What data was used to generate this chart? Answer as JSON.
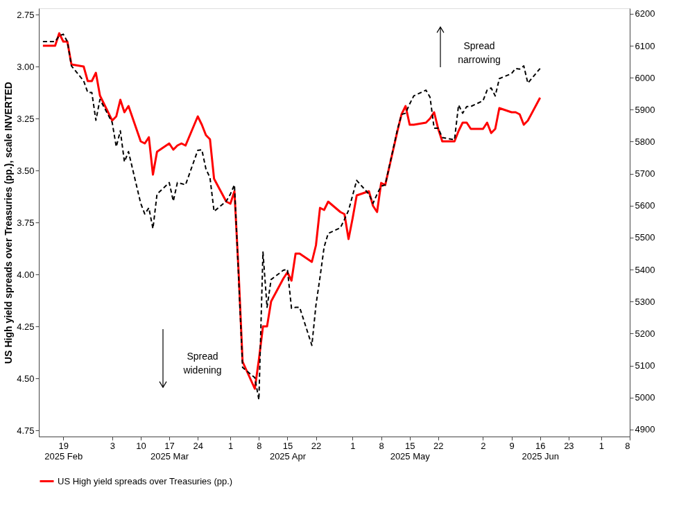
{
  "chart_data": {
    "type": "line",
    "ylabel": "US High yield spreads over Treasuries (pp.), scale INVERTED",
    "legend": "bottom",
    "xlim": [
      "2025-02-13",
      "2025-07-08"
    ],
    "xticks": [
      {
        "value": "2025-02-19",
        "label": "19\n2025 Feb"
      },
      {
        "value": "2025-03-03",
        "label": "3"
      },
      {
        "value": "2025-03-10",
        "label": "10"
      },
      {
        "value": "2025-03-17",
        "label": "17\n2025 Mar"
      },
      {
        "value": "2025-03-24",
        "label": "24"
      },
      {
        "value": "2025-04-01",
        "label": "1"
      },
      {
        "value": "2025-04-08",
        "label": "8"
      },
      {
        "value": "2025-04-15",
        "label": "15\n2025 Apr"
      },
      {
        "value": "2025-04-22",
        "label": "22"
      },
      {
        "value": "2025-05-01",
        "label": "1"
      },
      {
        "value": "2025-05-08",
        "label": "8"
      },
      {
        "value": "2025-05-15",
        "label": "15\n2025 May"
      },
      {
        "value": "2025-05-22",
        "label": "22"
      },
      {
        "value": "2025-06-02",
        "label": "2"
      },
      {
        "value": "2025-06-09",
        "label": "9"
      },
      {
        "value": "2025-06-16",
        "label": "16\n2025 Jun"
      },
      {
        "value": "2025-06-23",
        "label": "23"
      },
      {
        "value": "2025-07-01",
        "label": "1"
      },
      {
        "value": "2025-07-08",
        "label": "8"
      }
    ],
    "ylim": [
      4.78,
      2.72
    ],
    "yticks": [
      2.75,
      {
        "value": 3,
        "label": "3.00"
      },
      3.25,
      {
        "value": 3.5,
        "label": "3.50"
      },
      3.75,
      {
        "value": 4,
        "label": "4.00"
      },
      4.25,
      {
        "value": 4.5,
        "label": "4.50"
      },
      4.75
    ],
    "y2lim": [
      4878,
      6217
    ],
    "y2ticks": [
      4900,
      5000,
      5100,
      5200,
      5300,
      5400,
      5500,
      5600,
      5700,
      5800,
      5900,
      6000,
      6100,
      6200
    ],
    "annotations": [
      "Spread\nnarrowing",
      "Spread\nwidening"
    ],
    "x": [
      "2025-02-14",
      "2025-02-17",
      "2025-02-18",
      "2025-02-19",
      "2025-02-20",
      "2025-02-21",
      "2025-02-24",
      "2025-02-25",
      "2025-02-26",
      "2025-02-27",
      "2025-02-28",
      "2025-03-03",
      "2025-03-04",
      "2025-03-05",
      "2025-03-06",
      "2025-03-07",
      "2025-03-10",
      "2025-03-11",
      "2025-03-12",
      "2025-03-13",
      "2025-03-14",
      "2025-03-17",
      "2025-03-18",
      "2025-03-19",
      "2025-03-20",
      "2025-03-21",
      "2025-03-24",
      "2025-03-25",
      "2025-03-26",
      "2025-03-27",
      "2025-03-28",
      "2025-03-31",
      "2025-04-01",
      "2025-04-02",
      "2025-04-03",
      "2025-04-04",
      "2025-04-07",
      "2025-04-08",
      "2025-04-09",
      "2025-04-10",
      "2025-04-11",
      "2025-04-14",
      "2025-04-15",
      "2025-04-16",
      "2025-04-17",
      "2025-04-18",
      "2025-04-21",
      "2025-04-22",
      "2025-04-23",
      "2025-04-24",
      "2025-04-25",
      "2025-04-28",
      "2025-04-29",
      "2025-04-30",
      "2025-05-01",
      "2025-05-02",
      "2025-05-05",
      "2025-05-06",
      "2025-05-07",
      "2025-05-08",
      "2025-05-09",
      "2025-05-12",
      "2025-05-13",
      "2025-05-14",
      "2025-05-15",
      "2025-05-16",
      "2025-05-19",
      "2025-05-20",
      "2025-05-21",
      "2025-05-22",
      "2025-05-23",
      "2025-05-26",
      "2025-05-27",
      "2025-05-28",
      "2025-05-29",
      "2025-05-30",
      "2025-06-02",
      "2025-06-03",
      "2025-06-04",
      "2025-06-05",
      "2025-06-06",
      "2025-06-09",
      "2025-06-10",
      "2025-06-11",
      "2025-06-12",
      "2025-06-13",
      "2025-06-16"
    ],
    "series": [
      {
        "name": "US High yield spreads over Treasuries (pp.)",
        "color": "#ff0000",
        "line_style": "solid",
        "values": [
          2.9,
          2.9,
          2.84,
          2.88,
          2.88,
          2.99,
          3.0,
          3.07,
          3.07,
          3.03,
          3.14,
          3.26,
          3.24,
          3.16,
          3.22,
          3.19,
          3.36,
          3.37,
          3.34,
          3.52,
          3.41,
          3.37,
          3.4,
          3.38,
          3.37,
          3.38,
          3.24,
          3.28,
          3.33,
          3.35,
          3.54,
          3.65,
          3.66,
          3.6,
          3.98,
          4.42,
          4.55,
          4.41,
          4.25,
          4.25,
          4.13,
          4.02,
          3.99,
          4.03,
          3.9,
          3.9,
          3.94,
          3.86,
          3.68,
          3.69,
          3.65,
          3.7,
          3.71,
          3.83,
          3.73,
          3.62,
          3.6,
          3.67,
          3.7,
          3.56,
          3.57,
          3.31,
          3.23,
          3.19,
          3.28,
          3.28,
          3.27,
          3.25,
          3.22,
          3.3,
          3.36,
          3.36,
          3.31,
          3.27,
          3.27,
          3.3,
          3.3,
          3.27,
          3.32,
          3.3,
          3.2,
          3.22,
          3.22,
          3.23,
          3.28,
          3.26,
          3.15
        ]
      },
      {
        "color": "#000000",
        "line_style": "dashed",
        "axis": "y2",
        "values": [
          6113,
          6113,
          6131,
          6136,
          6113,
          6037,
          5990,
          5954,
          5954,
          5867,
          5932,
          5860,
          5784,
          5834,
          5737,
          5769,
          5607,
          5574,
          5593,
          5528,
          5636,
          5672,
          5614,
          5672,
          5669,
          5665,
          5773,
          5775,
          5715,
          5687,
          5582,
          5614,
          5636,
          5665,
          5383,
          5094,
          5062,
          4993,
          5455,
          5282,
          5369,
          5398,
          5401,
          5279,
          5282,
          5282,
          5163,
          5289,
          5376,
          5470,
          5513,
          5531,
          5557,
          5585,
          5632,
          5679,
          5636,
          5607,
          5636,
          5661,
          5665,
          5838,
          5885,
          5889,
          5918,
          5943,
          5961,
          5939,
          5842,
          5842,
          5813,
          5806,
          5915,
          5889,
          5910,
          5910,
          5928,
          5961,
          5968,
          5943,
          5997,
          6013,
          6029,
          6027,
          6037,
          5983,
          6029
        ]
      }
    ]
  }
}
